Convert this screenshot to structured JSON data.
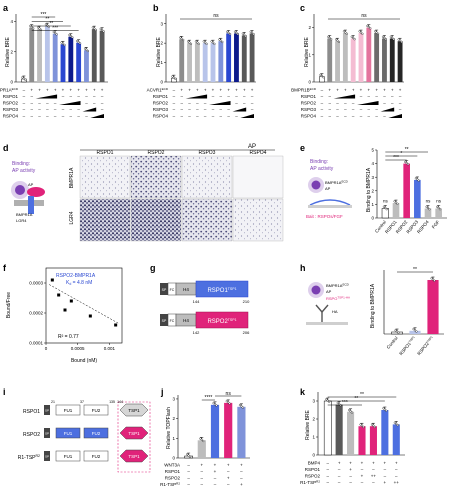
{
  "colors": {
    "bmp_dark": "#595959",
    "bmp_mid": "#8c8c8c",
    "bmp_light": "#bdbdbd",
    "blue1": "#b8c4ea",
    "blue2": "#7f93da",
    "blue3": "#2a47d1",
    "blue4": "#0c1a8c",
    "pink1": "#f4bcd2",
    "pink2": "#e3749d",
    "pink3": "#6b6b6b",
    "pink4": "#262626",
    "magenta": "#e0237a",
    "blue_box": "#4d6fe0",
    "violet": "#7a3fb2"
  },
  "panels": {
    "a": {
      "label": "a",
      "ylabel": "Relative BRE",
      "ticks": [
        "0",
        "2",
        "4"
      ],
      "stars": [
        "***",
        "**",
        "**",
        "***"
      ],
      "rows": [
        "BMPR1A",
        "RSPO1",
        "RSPO2",
        "RSPO3",
        "RSPO4"
      ],
      "row_sup": "ECD",
      "row_values": [
        [
          "–",
          "+",
          "+",
          "+",
          "+",
          "+",
          "+",
          "+",
          "+",
          "+",
          "+"
        ],
        [
          "–",
          "–",
          "",
          "",
          "",
          "",
          "",
          "",
          "",
          "",
          ""
        ],
        [
          "–",
          "–",
          "",
          "",
          "",
          "",
          "",
          "",
          "",
          "",
          ""
        ],
        [
          "–",
          "–",
          "–",
          "–",
          "–",
          "–",
          "–",
          "+",
          "–",
          "–",
          "–"
        ],
        [
          "–",
          "–",
          "–",
          "–",
          "–",
          "–",
          "–",
          "–",
          "",
          "",
          ""
        ]
      ]
    },
    "b": {
      "label": "b",
      "ylabel": "Relative BRE",
      "ticks": [
        "0",
        "1",
        "2",
        "3"
      ],
      "ns": "ns",
      "rows": [
        "ACVR1",
        "RSPO1",
        "RSPO2",
        "RSPO3",
        "RSPO4"
      ],
      "row_sup": "ECD"
    },
    "c": {
      "label": "c",
      "ylabel": "Relative BRE",
      "ticks": [
        "0",
        "1",
        "2"
      ],
      "ns": "ns",
      "rows": [
        "BMPR1B",
        "RSPO1",
        "RSPO2",
        "RSPO3",
        "RSPO4"
      ],
      "row_sup": "ECD"
    },
    "d": {
      "label": "d",
      "ap": "AP",
      "cols": [
        "RSPO1",
        "RSPO2",
        "RSPO3",
        "RSPO4"
      ],
      "rows": [
        "BMPR1A",
        "LGR4"
      ],
      "cartoon": {
        "binding": "Binding:",
        "activity": "AP activity",
        "ap": "AP",
        "receptor": "BMPR1A",
        "lgr4": "LGR4"
      }
    },
    "e": {
      "label": "e",
      "ylabel": "Binding to BMPR1A",
      "cartoon": {
        "binding": "Binding:",
        "activity": "AP activity",
        "ecd": "BMPR1A",
        "ecd_sup": "ECD",
        "ap": "AP",
        "bait": "Bait : RSPOs/FGF"
      },
      "categories": [
        "Control",
        "RSPO1",
        "RSPO2",
        "RSPO3",
        "RSPO4",
        "FGF"
      ],
      "stars": [
        "*",
        "***",
        "**"
      ],
      "ns": [
        "ns",
        "ns",
        "ns"
      ]
    },
    "f": {
      "label": "f",
      "xlabel": "Bound (nM)",
      "ylabel": "Bound/Free",
      "legend": "RSPO2-BMPR1A",
      "kd": "K",
      "kd_sub": "d",
      "kd_val": " = 4.8 nM",
      "r2": "R² = 0.77",
      "xticks": [
        "0",
        "0.0005",
        "0.001"
      ],
      "yticks": [
        "0.0001",
        "0.0002",
        "0.0003"
      ]
    },
    "g": {
      "label": "g",
      "constructs": [
        {
          "sp": "SP",
          "tag": "FC",
          "h4": "H4",
          "name": "RSPO1",
          "sup": "TSP1",
          "start": "144",
          "end": "210"
        },
        {
          "sp": "SP",
          "tag": "FC",
          "h4": "H4",
          "name": "RSPO2",
          "sup": "TSP1",
          "start": "142",
          "end": "206"
        }
      ]
    },
    "h": {
      "label": "h",
      "ylabel": "Binding to BMPR1A",
      "cartoon": {
        "receptor": "BMPR1A",
        "sup": "ECD",
        "ap": "AP",
        "ha": "HA",
        "rspo": "RSPO",
        "rspo_sup": "TSP1-HA"
      },
      "categories": [
        "Control",
        "RSPO1",
        "RSPO2"
      ],
      "cat_sup": "TSP1",
      "stars": "**"
    },
    "i": {
      "label": "i",
      "constructs": [
        {
          "name": "RSPO1",
          "sp": "SP",
          "fu1": "FU1",
          "fu2": "FU2",
          "tsp": "TSP1",
          "n1": "21",
          "n2": "37",
          "n3": "135",
          "n4": "144"
        },
        {
          "name": "RSPO2",
          "sp": "SP",
          "fu1": "FU1",
          "fu2": "FU2",
          "tsp": "TSP1",
          "n1": "",
          "n2": "",
          "n3": "",
          "n4": ""
        },
        {
          "name": "R1-TSP",
          "sup": "R2",
          "sp": "SP",
          "fu1": "FU1",
          "fu2": "FU2",
          "tsp": "TSP1",
          "n1": "",
          "n2": "",
          "n3": "",
          "n4": ""
        }
      ]
    },
    "j": {
      "label": "j",
      "ylabel": "Relative TOPFlash",
      "ticks": [
        "0",
        "1",
        "2",
        "3"
      ],
      "stars": "****",
      "ns": "ns",
      "rows": [
        "WNT3A",
        "RSPO1",
        "RSPO2",
        "R1-TSP"
      ],
      "row_sup": "R2"
    },
    "k": {
      "label": "k",
      "ylabel": "Relative BRE",
      "ticks": [
        "0",
        "1",
        "2",
        "3"
      ],
      "stars": [
        "**",
        "**",
        "***"
      ],
      "rows": [
        "BMP4",
        "RSPO1",
        "RSPO2",
        "R1-TSP"
      ],
      "row_sup": "R2"
    }
  },
  "chart_data": [
    {
      "panel": "a",
      "type": "bar",
      "ylabel": "Relative BRE",
      "ylim": [
        0,
        4.5
      ],
      "values": [
        0.2,
        3.6,
        3.5,
        3.7,
        3.2,
        2.5,
        3.0,
        2.6,
        2.1,
        3.5,
        3.4
      ]
    },
    {
      "panel": "b",
      "type": "bar",
      "ylabel": "Relative BRE",
      "ylim": [
        0,
        3.5
      ],
      "values": [
        0.2,
        2.2,
        2.0,
        2.0,
        2.0,
        2.0,
        2.1,
        2.5,
        2.5,
        2.4,
        2.5
      ]
    },
    {
      "panel": "c",
      "type": "bar",
      "ylabel": "Relative BRE",
      "ylim": [
        0,
        2.5
      ],
      "values": [
        0.2,
        1.6,
        1.5,
        1.8,
        1.6,
        1.8,
        2.0,
        1.8,
        1.6,
        1.6,
        1.5
      ]
    },
    {
      "panel": "e",
      "type": "bar",
      "ylabel": "Binding to BMPR1A",
      "ylim": [
        0,
        5
      ],
      "categories": [
        "Control",
        "RSPO1",
        "RSPO2",
        "RSPO3",
        "RSPO4",
        "FGF"
      ],
      "values": [
        0.7,
        1.1,
        4.0,
        2.8,
        0.7,
        0.7
      ]
    },
    {
      "panel": "f",
      "type": "scatter",
      "xlabel": "Bound (nM)",
      "ylabel": "Bound/Free",
      "xlim": [
        0,
        0.0012
      ],
      "ylim": [
        0.0001,
        0.00035
      ],
      "x": [
        0.0001,
        0.0002,
        0.0003,
        0.0004,
        0.0007,
        0.0011
      ],
      "y": [
        0.00031,
        0.00026,
        0.00021,
        0.00024,
        0.00019,
        0.00016
      ]
    },
    {
      "panel": "h",
      "type": "bar",
      "ylabel": "Binding to BMPR1A",
      "ylim": [
        0,
        160
      ],
      "categories": [
        "Control",
        "RSPO1",
        "RSPO2"
      ],
      "values": [
        5,
        8,
        135
      ]
    },
    {
      "panel": "j",
      "type": "bar",
      "ylabel": "Relative TOPFlash",
      "ylim": [
        0,
        3.2
      ],
      "values": [
        0.1,
        0.9,
        2.7,
        2.8,
        2.6
      ]
    },
    {
      "panel": "k",
      "type": "bar",
      "ylabel": "Relative BRE",
      "ylim": [
        0,
        3.5
      ],
      "values": [
        3.0,
        2.8,
        2.4,
        1.6,
        1.6,
        2.5,
        1.7
      ]
    }
  ]
}
